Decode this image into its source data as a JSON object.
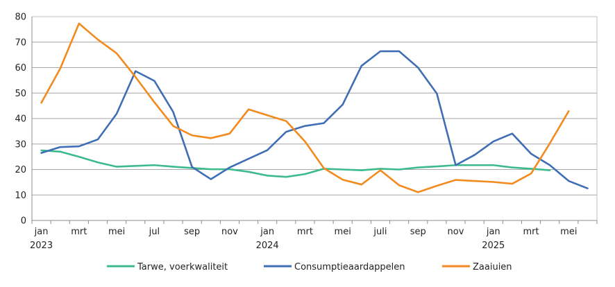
{
  "chart_data": {
    "type": "line",
    "title": "",
    "xlabel": "",
    "ylabel": "",
    "ylim": [
      0,
      80
    ],
    "yticks": [
      0,
      10,
      20,
      30,
      40,
      50,
      60,
      70,
      80
    ],
    "grid": "horizontal",
    "legend_position": "bottom",
    "categories": [
      "2023-01",
      "2023-02",
      "2023-03",
      "2023-04",
      "2023-05",
      "2023-06",
      "2023-07",
      "2023-08",
      "2023-09",
      "2023-10",
      "2023-11",
      "2023-12",
      "2024-01",
      "2024-02",
      "2024-03",
      "2024-04",
      "2024-05",
      "2024-06",
      "2024-07",
      "2024-08",
      "2024-09",
      "2024-10",
      "2024-11",
      "2024-12",
      "2025-01",
      "2025-02",
      "2025-03",
      "2025-04",
      "2025-05",
      "2025-06"
    ],
    "x_tick_labels": [
      {
        "index": 0,
        "month": "jan",
        "year": "2023"
      },
      {
        "index": 2,
        "month": "mrt",
        "year": ""
      },
      {
        "index": 4,
        "month": "mei",
        "year": ""
      },
      {
        "index": 6,
        "month": "jul",
        "year": ""
      },
      {
        "index": 8,
        "month": "sep",
        "year": ""
      },
      {
        "index": 10,
        "month": "nov",
        "year": ""
      },
      {
        "index": 12,
        "month": "jan",
        "year": "2024"
      },
      {
        "index": 14,
        "month": "mrt",
        "year": ""
      },
      {
        "index": 16,
        "month": "mei",
        "year": ""
      },
      {
        "index": 18,
        "month": "juli",
        "year": ""
      },
      {
        "index": 20,
        "month": "sep",
        "year": ""
      },
      {
        "index": 22,
        "month": "nov",
        "year": ""
      },
      {
        "index": 24,
        "month": "jan",
        "year": "2025"
      },
      {
        "index": 26,
        "month": "mrt",
        "year": ""
      },
      {
        "index": 28,
        "month": "mei",
        "year": ""
      }
    ],
    "series": [
      {
        "name": "Tarwe, voerkwaliteit",
        "color": "#3dba8c",
        "values": [
          27.5,
          27.0,
          25.0,
          22.8,
          21.1,
          21.4,
          21.7,
          21.1,
          20.6,
          20.1,
          20.1,
          19.1,
          17.6,
          17.1,
          18.2,
          20.3,
          20.0,
          19.7,
          20.3,
          20.0,
          20.8,
          21.2,
          21.7,
          21.7,
          21.7,
          20.8,
          20.3,
          19.7,
          null,
          null
        ]
      },
      {
        "name": "Consumptieaardappelen",
        "color": "#3f6eb4",
        "values": [
          26.5,
          28.8,
          29.1,
          31.8,
          41.9,
          58.6,
          54.8,
          42.6,
          21.0,
          16.2,
          20.8,
          24.2,
          27.6,
          34.8,
          37.1,
          38.2,
          45.5,
          60.7,
          66.4,
          66.4,
          60.0,
          49.8,
          21.7,
          25.7,
          31.0,
          34.1,
          26.2,
          21.7,
          15.5,
          12.6
        ]
      },
      {
        "name": "Zaaiuien",
        "color": "#f28a1e",
        "values": [
          46.2,
          59.6,
          77.3,
          71.0,
          65.6,
          56.3,
          46.4,
          37.1,
          33.4,
          32.3,
          34.1,
          43.6,
          41.3,
          39.0,
          31.0,
          20.5,
          16.0,
          14.1,
          19.7,
          13.8,
          11.1,
          13.6,
          15.9,
          15.5,
          15.1,
          14.4,
          18.4,
          30.3,
          42.9,
          null
        ]
      }
    ]
  }
}
